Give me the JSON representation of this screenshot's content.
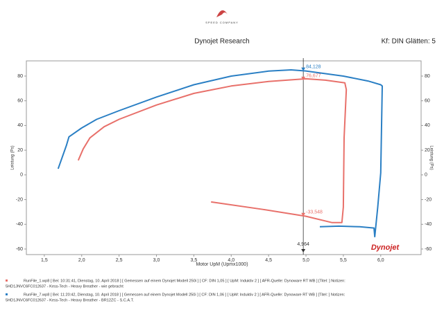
{
  "chart_data": {
    "type": "line",
    "brand": "SPEED COMPANY",
    "title": "Dynojet Research",
    "subtitle": "Kf: DIN Glätten: 5",
    "logo": "Dynojet",
    "xlabel": "Motor UpM (Upmx1000)",
    "ylabel": "Leistung (Ps)",
    "y2label": "Leistung (Ps)",
    "xlim": [
      1.26,
      6.54
    ],
    "ylim": [
      -64.5,
      92.3
    ],
    "xticks": [
      {
        "value": 1.5,
        "label": "1,5"
      },
      {
        "value": 2.0,
        "label": "2,0"
      },
      {
        "value": 2.5,
        "label": "2,5"
      },
      {
        "value": 3.0,
        "label": "3,0"
      },
      {
        "value": 3.5,
        "label": "3,5"
      },
      {
        "value": 4.0,
        "label": "4,0"
      },
      {
        "value": 4.5,
        "label": "4,5"
      },
      {
        "value": 5.0,
        "label": "5,0"
      },
      {
        "value": 5.5,
        "label": "5,5"
      },
      {
        "value": 6.0,
        "label": "6,0"
      }
    ],
    "yticks": [
      -60,
      -40,
      -20,
      0,
      20,
      40,
      60,
      80
    ],
    "grid": false,
    "cursor": {
      "value": 4.964,
      "label": "4,964"
    },
    "series": [
      {
        "name": "RunFile_1.wp8 [ Bei: 10:31:41, Dienstag, 10. April 2018 ] [ Gemessen auf einem Dynojet Modell 250i ] [ CF: DIN 1,05 ] [ UpM: Induktiv 2 ] [ AFR-Quelle: Dynoware RT WB ] [Titel: ]  Notizen:",
        "notes": "5HD1JNVC6FC012637 - Kess-Tech - Heavy Breather - wie gebracht",
        "color": "#e8706a",
        "x": [
          1.954,
          2.02,
          2.11,
          2.3,
          2.5,
          3.0,
          3.5,
          4.0,
          4.5,
          5.0,
          5.26,
          5.52,
          5.54,
          5.51,
          5.5,
          5.48,
          5.35,
          5.0,
          4.43,
          3.73
        ],
        "values": [
          11.8,
          21,
          30,
          39,
          45,
          56.6,
          66,
          72,
          75.6,
          77.8,
          76.7,
          74.5,
          69,
          30,
          -26,
          -38.6,
          -38.6,
          -33.5,
          -28,
          -21.9
        ]
      },
      {
        "name": "RunFile_7.wp8 [ Bei: 11:20:42, Dienstag, 10. April 2018 ] [ Gemessen auf einem Dynojet Modell 250i ] [ CF: DIN 1,06 ] [ UpM: Induktiv 2 ] [ AFR-Quelle: Dynoware RT WB ] [Titel: ]  Notizen:",
        "notes": "5HD1JNVC6FC012637 - Kess-Tech - Heavy Breather - BR12ZC - S.C.A.T.",
        "color": "#2a7fc4",
        "x": [
          1.685,
          1.796,
          1.83,
          2.0,
          2.2,
          2.5,
          3.0,
          3.5,
          4.0,
          4.5,
          4.8,
          5.0,
          5.5,
          5.83,
          6.0,
          6.02,
          6.0,
          5.96,
          5.92,
          5.91,
          5.72,
          5.44,
          5.185
        ],
        "values": [
          5.0,
          24,
          30.8,
          38,
          45,
          52,
          63,
          73,
          80,
          84,
          85,
          84.1,
          80,
          76,
          73,
          72,
          1.7,
          -26,
          -50,
          -43,
          -42,
          -41.5,
          -42
        ]
      }
    ],
    "annotations": [
      {
        "text": "84,128",
        "x": 4.964,
        "y": 84.128,
        "color": "#2a7fc4"
      },
      {
        "text": "76,677",
        "x": 4.964,
        "y": 76.677,
        "color": "#e8706a"
      },
      {
        "text": "-33,548",
        "x": 4.964,
        "y": -33.548,
        "color": "#e8706a"
      }
    ]
  }
}
